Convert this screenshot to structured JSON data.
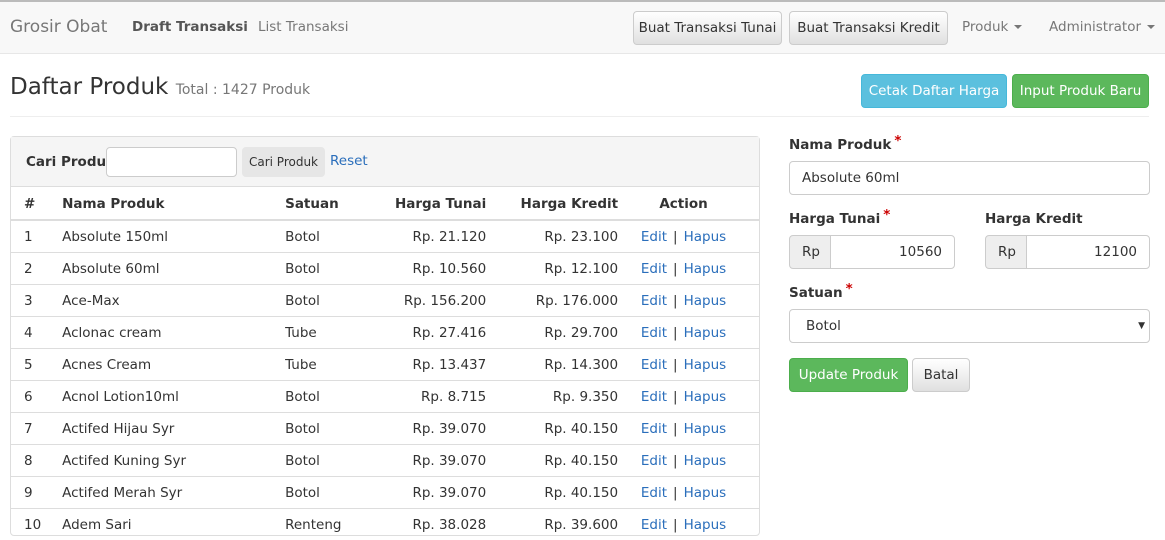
{
  "navbar": {
    "brand": "Grosir Obat",
    "links": [
      "Draft Transaksi",
      "List Transaksi"
    ],
    "buttons": [
      "Buat Transaksi Tunai",
      "Buat Transaksi Kredit"
    ],
    "dropdowns": [
      "Produk",
      "Administrator"
    ]
  },
  "header": {
    "title": "Daftar Produk",
    "subtitle": "Total : 1427 Produk",
    "buttons": [
      "Cetak Daftar Harga",
      "Input Produk Baru"
    ]
  },
  "search": {
    "label": "Cari Produk",
    "button": "Cari Produk",
    "reset": "Reset"
  },
  "table": {
    "columns": [
      "#",
      "Nama Produk",
      "Satuan",
      "Harga Tunai",
      "Harga Kredit",
      "Action"
    ],
    "rows": [
      [
        1,
        "Absolute 150ml",
        "Botol",
        "Rp. 21.120",
        "Rp. 23.100"
      ],
      [
        2,
        "Absolute 60ml",
        "Botol",
        "Rp. 10.560",
        "Rp. 12.100"
      ],
      [
        3,
        "Ace-Max",
        "Botol",
        "Rp. 156.200",
        "Rp. 176.000"
      ],
      [
        4,
        "Aclonac cream",
        "Tube",
        "Rp. 27.416",
        "Rp. 29.700"
      ],
      [
        5,
        "Acnes Cream",
        "Tube",
        "Rp. 13.437",
        "Rp. 14.300"
      ],
      [
        6,
        "Acnol Lotion10ml",
        "Botol",
        "Rp. 8.715",
        "Rp. 9.350"
      ],
      [
        7,
        "Actifed Hijau Syr",
        "Botol",
        "Rp. 39.070",
        "Rp. 40.150"
      ],
      [
        8,
        "Actifed Kuning Syr",
        "Botol",
        "Rp. 39.070",
        "Rp. 40.150"
      ],
      [
        9,
        "Actifed Merah Syr",
        "Botol",
        "Rp. 39.070",
        "Rp. 40.150"
      ],
      [
        10,
        "Adem Sari",
        "Renteng",
        "Rp. 38.028",
        "Rp. 39.600"
      ]
    ],
    "actions": [
      "Edit",
      "|",
      "Hapus"
    ]
  },
  "form": {
    "required_mark": "*",
    "nama_label": "Nama Produk",
    "nama_value": "Absolute 60ml",
    "tunai_label": "Harga Tunai",
    "kredit_label": "Harga Kredit",
    "currency": "Rp",
    "tunai_value": "10560",
    "kredit_value": "12100",
    "satuan_label": "Satuan",
    "satuan_value": "Botol",
    "buttons": [
      "Update Produk",
      "Batal"
    ]
  }
}
